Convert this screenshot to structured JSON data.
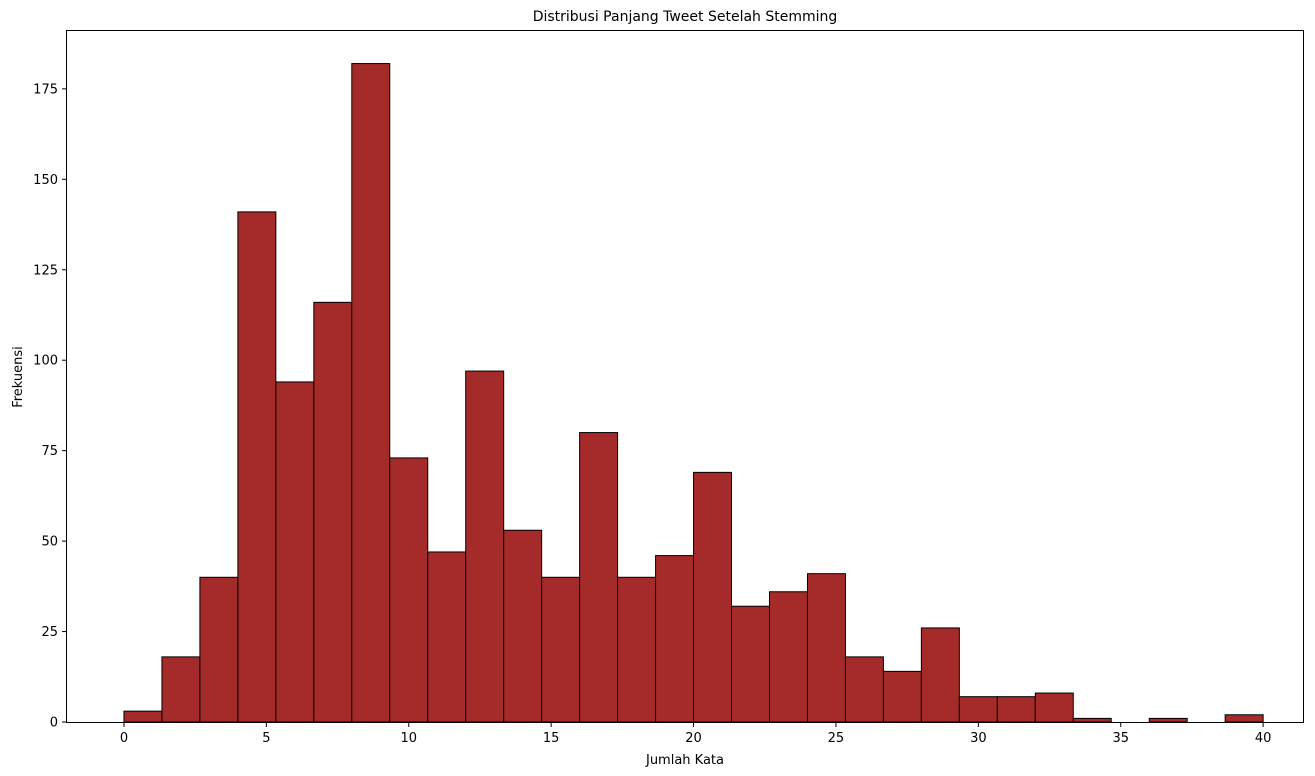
{
  "chart_data": {
    "type": "bar",
    "title": "Distribusi Panjang Tweet Setelah Stemming",
    "xlabel": "Jumlah Kata",
    "ylabel": "Frekuensi",
    "xlim": [
      -2,
      41.4
    ],
    "ylim": [
      0,
      191
    ],
    "x_ticks": [
      0,
      5,
      10,
      15,
      20,
      25,
      30,
      35,
      40
    ],
    "y_ticks": [
      0,
      25,
      50,
      75,
      100,
      125,
      150,
      175
    ],
    "bin_start": 0,
    "bin_end": 40,
    "bin_width": 1.3333,
    "values": [
      3,
      18,
      40,
      141,
      94,
      116,
      182,
      73,
      47,
      97,
      53,
      40,
      80,
      40,
      46,
      69,
      32,
      36,
      41,
      18,
      14,
      26,
      7,
      7,
      8,
      1,
      0,
      1,
      0,
      2
    ],
    "bar_color": "#a52a2a",
    "edge_color": "#000000",
    "grid": false
  }
}
